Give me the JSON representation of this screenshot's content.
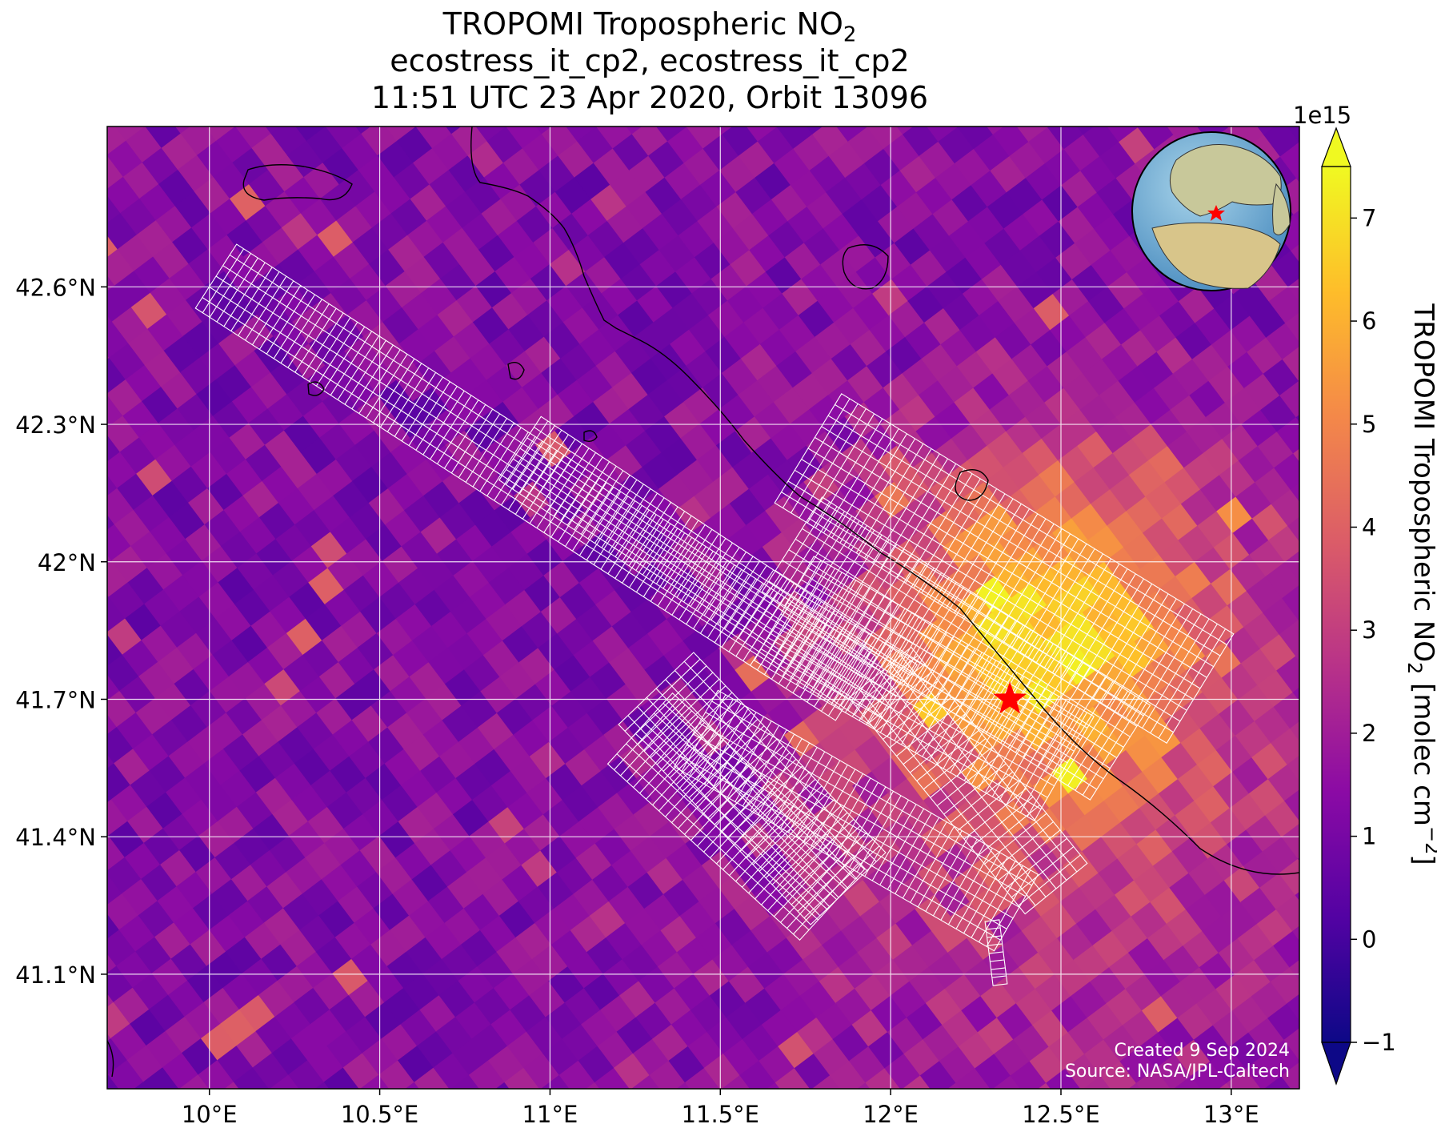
{
  "title": {
    "line1_prefix": "TROPOMI Tropospheric NO",
    "line1_sub": "2",
    "line2": "ecostress_it_cp2, ecostress_it_cp2",
    "line3": "11:51 UTC 23 Apr 2020, Orbit 13096"
  },
  "map": {
    "lon_range": [
      9.7,
      13.2
    ],
    "lat_range": [
      40.85,
      42.95
    ],
    "x_ticks": [
      {
        "value": 10.0,
        "label": "10°E"
      },
      {
        "value": 10.5,
        "label": "10.5°E"
      },
      {
        "value": 11.0,
        "label": "11°E"
      },
      {
        "value": 11.5,
        "label": "11.5°E"
      },
      {
        "value": 12.0,
        "label": "12°E"
      },
      {
        "value": 12.5,
        "label": "12.5°E"
      },
      {
        "value": 13.0,
        "label": "13°E"
      }
    ],
    "y_ticks": [
      {
        "value": 42.6,
        "label": "42.6°N"
      },
      {
        "value": 42.3,
        "label": "42.3°N"
      },
      {
        "value": 42.0,
        "label": "42°N"
      },
      {
        "value": 41.7,
        "label": "41.7°N"
      },
      {
        "value": 41.4,
        "label": "41.4°N"
      },
      {
        "value": 41.1,
        "label": "41.1°N"
      }
    ],
    "gridlines": true,
    "target_marker": {
      "lon": 12.35,
      "lat": 41.7,
      "color": "#ff0000",
      "icon": "star"
    },
    "inset": "globe-locator",
    "credits": [
      "Created 9 Sep 2024",
      "Source: NASA/JPL-Caltech"
    ]
  },
  "colorbar": {
    "exponent_label": "1e15",
    "label_prefix": "TROPOMI Tropospheric NO",
    "label_sub": "2",
    "label_mid": " [molec cm",
    "label_sup": "−2",
    "label_suffix": "]",
    "range": [
      -1,
      7.5
    ],
    "extend": "both",
    "colormap": "plasma",
    "ticks": [
      {
        "value": -1,
        "label": "−1"
      },
      {
        "value": 0,
        "label": "0"
      },
      {
        "value": 1,
        "label": "1"
      },
      {
        "value": 2,
        "label": "2"
      },
      {
        "value": 3,
        "label": "3"
      },
      {
        "value": 4,
        "label": "4"
      },
      {
        "value": 5,
        "label": "5"
      },
      {
        "value": 6,
        "label": "6"
      },
      {
        "value": 7,
        "label": "7"
      }
    ]
  },
  "colors": {
    "grid": "#ffffff",
    "coast": "#000000",
    "swath": "#ffffff",
    "plasma_stops": [
      "#0d0887",
      "#5302a3",
      "#8b0aa5",
      "#b83289",
      "#db5c68",
      "#f48849",
      "#febd2a",
      "#f0f921"
    ]
  }
}
